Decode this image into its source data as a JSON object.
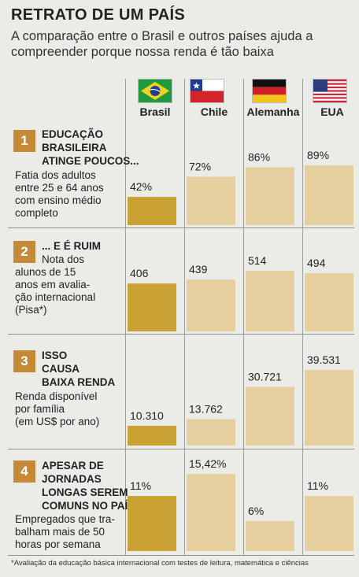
{
  "title": "RETRATO DE UM PAÍS",
  "subtitle": "A comparação entre o Brasil e outros países ajuda a compreender porque nossa renda é tão baixa",
  "countries": [
    "Brasil",
    "Chile",
    "Alemanha",
    "EUA"
  ],
  "rows": [
    {
      "num": "1",
      "heading": [
        "EDUCAÇÃO",
        "BRASILEIRA",
        "ATINGE POUCOS..."
      ],
      "desc": [
        "Fatia dos adultos",
        "entre 25 e 64 anos",
        "com ensino médio",
        "completo"
      ]
    },
    {
      "num": "2",
      "heading": [
        "... E É RUIM"
      ],
      "desc": [
        "Nota dos",
        "alunos de 15",
        "anos em avalia-",
        "ção internacional",
        "(Pisa*)"
      ]
    },
    {
      "num": "3",
      "heading": [
        "ISSO",
        "CAUSA",
        "BAIXA RENDA"
      ],
      "desc": [
        "Renda disponível",
        "por família",
        "(em US$ por ano)"
      ]
    },
    {
      "num": "4",
      "heading": [
        "APESAR DE",
        "JORNADAS",
        "LONGAS SEREM",
        "COMUNS NO PAÍS"
      ],
      "desc": [
        "Empregados que tra-",
        "balham mais de 50",
        "horas por semana"
      ]
    }
  ],
  "footnote": "*Avaliação da educação básica internacional com testes de leitura, matemática e ciências",
  "colors": {
    "brasil": "#c9a233",
    "others": "#e6cf9e",
    "number_box": "#c48a38"
  },
  "chart_data": [
    {
      "type": "bar",
      "categories": [
        "Brasil",
        "Chile",
        "Alemanha",
        "EUA"
      ],
      "values": [
        42,
        72,
        86,
        89
      ],
      "labels": [
        "42%",
        "72%",
        "86%",
        "89%"
      ]
    },
    {
      "type": "bar",
      "categories": [
        "Brasil",
        "Chile",
        "Alemanha",
        "EUA"
      ],
      "values": [
        406,
        439,
        514,
        494
      ],
      "labels": [
        "406",
        "439",
        "514",
        "494"
      ]
    },
    {
      "type": "bar",
      "categories": [
        "Brasil",
        "Chile",
        "Alemanha",
        "EUA"
      ],
      "values": [
        10310,
        13762,
        30721,
        39531
      ],
      "labels": [
        "10.310",
        "13.762",
        "30.721",
        "39.531"
      ]
    },
    {
      "type": "bar",
      "categories": [
        "Brasil",
        "Chile",
        "Alemanha",
        "EUA"
      ],
      "values": [
        11,
        15.42,
        6,
        11
      ],
      "labels": [
        "11%",
        "15,42%",
        "6%",
        "11%"
      ]
    }
  ]
}
